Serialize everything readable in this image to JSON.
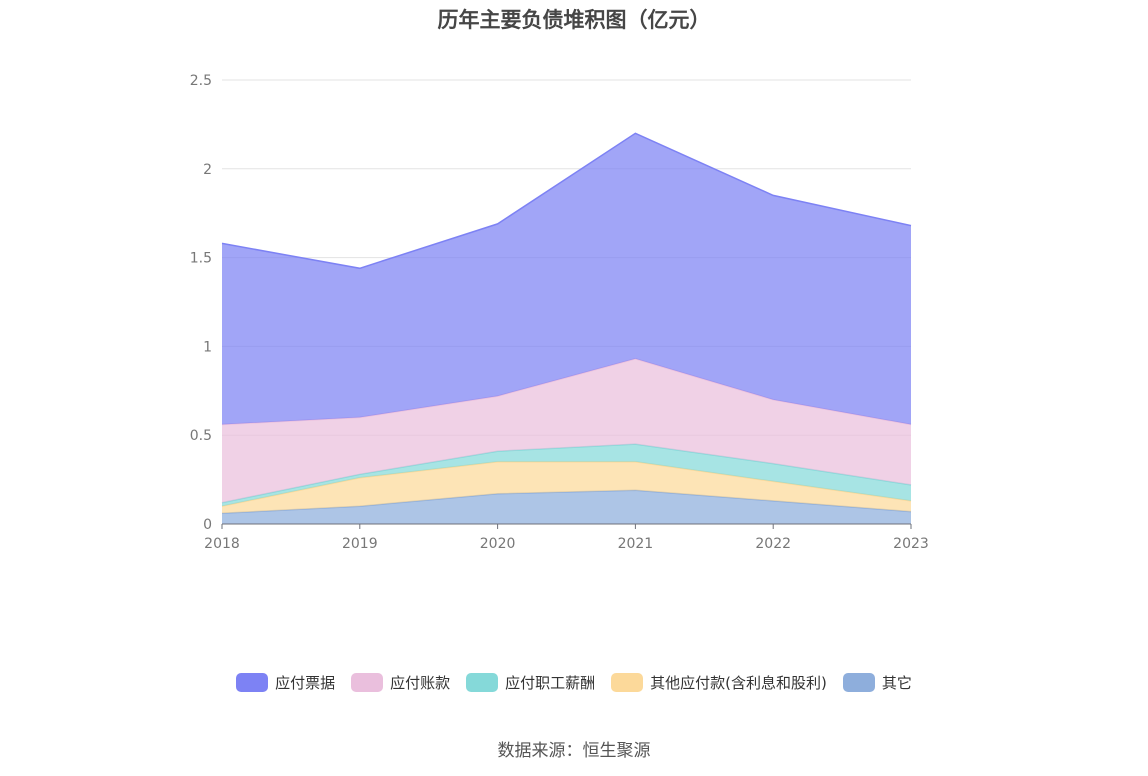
{
  "chart_data": {
    "type": "area",
    "stacked": true,
    "title": "历年主要负债堆积图（亿元）",
    "categories": [
      "2018",
      "2019",
      "2020",
      "2021",
      "2022",
      "2023"
    ],
    "ylim": [
      0,
      2.5
    ],
    "yticks": [
      "0",
      "0.5",
      "1",
      "1.5",
      "2",
      "2.5"
    ],
    "grid": true,
    "legend_position": "bottom",
    "series": [
      {
        "name": "其它",
        "color": "#8eaedc",
        "values": [
          0.06,
          0.1,
          0.17,
          0.19,
          0.13,
          0.07
        ]
      },
      {
        "name": "其他应付款(含利息和股利)",
        "color": "#fcd99a",
        "values": [
          0.04,
          0.16,
          0.18,
          0.16,
          0.11,
          0.06
        ]
      },
      {
        "name": "应付职工薪酬",
        "color": "#85d9d9",
        "values": [
          0.02,
          0.02,
          0.06,
          0.1,
          0.1,
          0.09
        ]
      },
      {
        "name": "应付账款",
        "color": "#eabfdd",
        "values": [
          0.44,
          0.32,
          0.31,
          0.48,
          0.36,
          0.34
        ]
      },
      {
        "name": "应付票据",
        "color": "#7d82f4",
        "values": [
          1.02,
          0.84,
          0.97,
          1.27,
          1.15,
          1.12
        ]
      }
    ],
    "legend_order": [
      "应付票据",
      "应付账款",
      "应付职工薪酬",
      "其他应付款(含利息和股利)",
      "其它"
    ]
  },
  "source": "数据来源：恒生聚源"
}
